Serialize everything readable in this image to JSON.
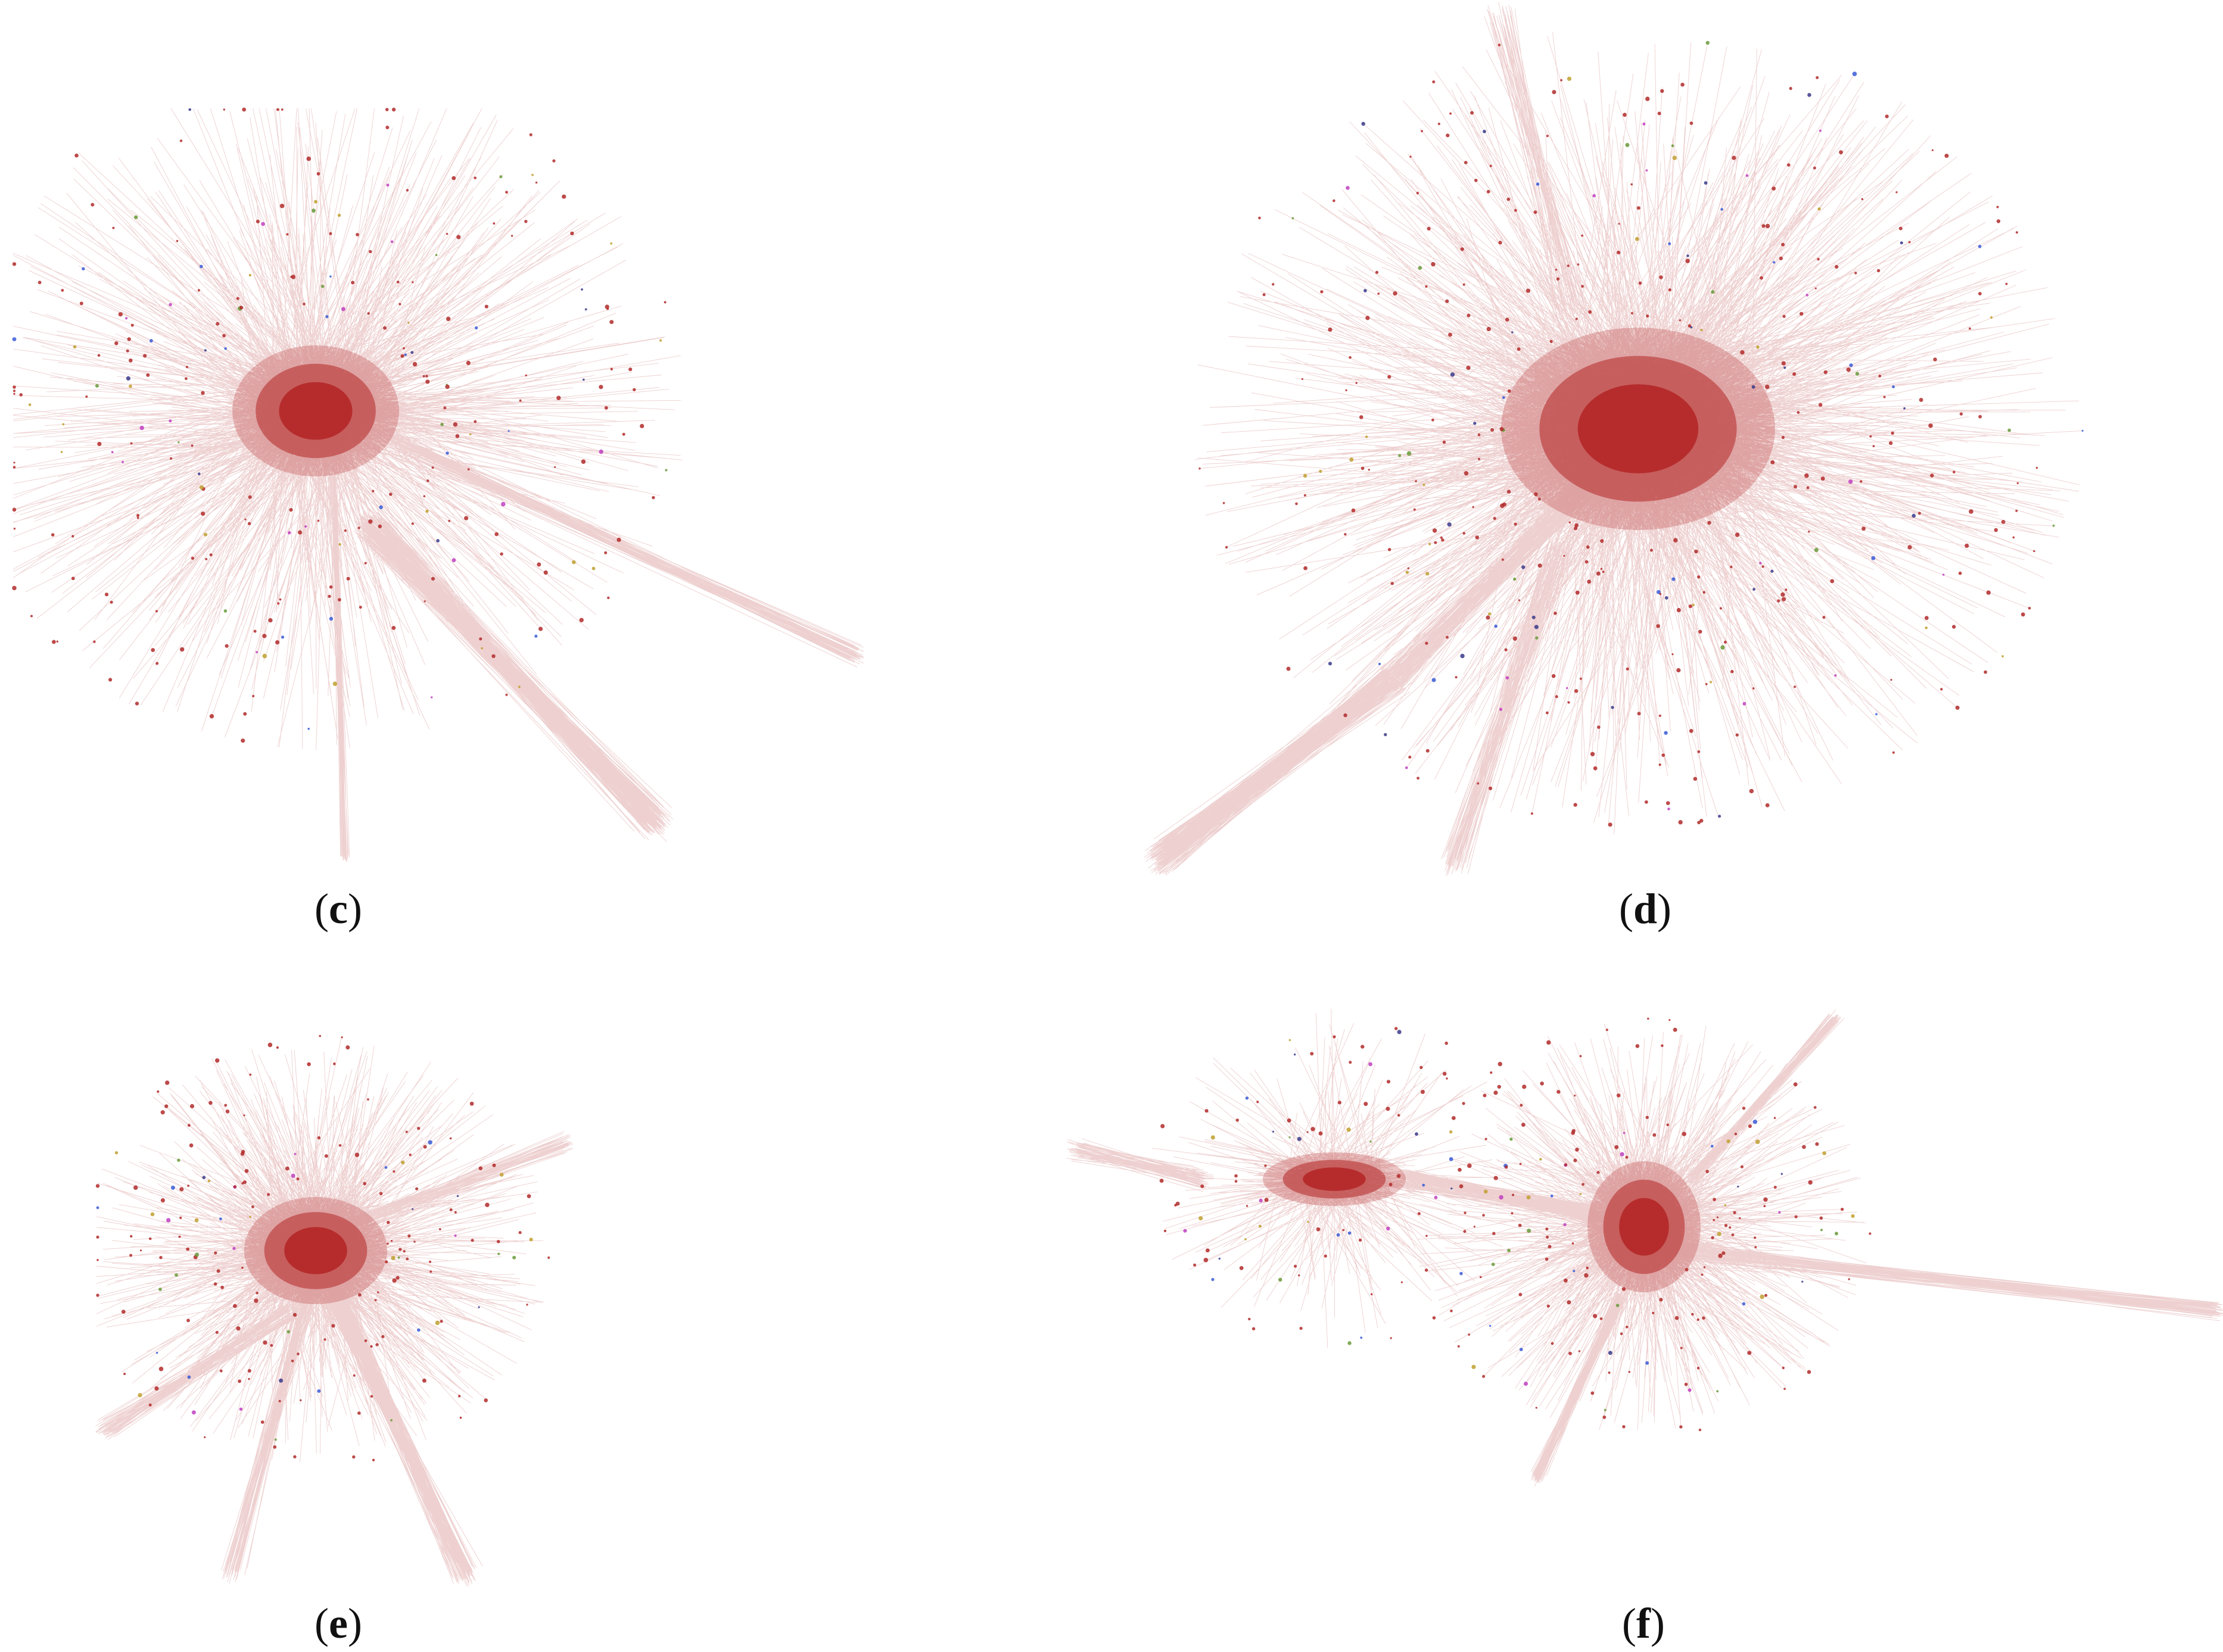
{
  "figure": {
    "panels": [
      {
        "id": "c",
        "caption": "c"
      },
      {
        "id": "d",
        "caption": "d"
      },
      {
        "id": "e",
        "caption": "e"
      },
      {
        "id": "f",
        "caption": "f"
      }
    ]
  },
  "colors": {
    "edge": "#b22a2a",
    "core": "#b01818",
    "node_accents": [
      "#3a5bd6",
      "#6a9a3a",
      "#c040c0",
      "#c0a030",
      "#3a3a8a"
    ]
  },
  "icons": {
    "network_graph": "network-graph-visualization"
  }
}
